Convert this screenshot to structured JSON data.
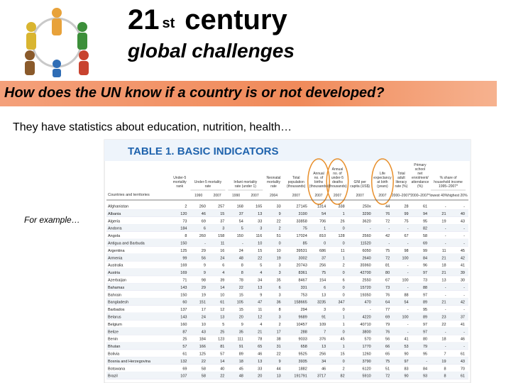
{
  "title": "21",
  "title_suffix": "st",
  "title_word": "century",
  "subtitle": "global challenges",
  "banner": "How does the UN know if a country is or not developed?",
  "intro": "They have statistics about education, nutrition, health…",
  "example_note": "For example…",
  "table": {
    "title": "TABLE 1. BASIC INDICATORS",
    "name_header": "Countries and territories",
    "groups": [
      {
        "label": "Under-5 mortality rank",
        "sub": []
      },
      {
        "label": "Under-5 mortality rate",
        "sub": [
          "1990",
          "2007"
        ]
      },
      {
        "label": "Infant mortality rate (under 1)",
        "sub": [
          "1990",
          "2007"
        ]
      },
      {
        "label": "Neonatal mortality rate",
        "sub": [
          "2004"
        ]
      },
      {
        "label": "Total population (thousands)",
        "sub": [
          "2007"
        ]
      },
      {
        "label": "Annual no. of births (thousands)",
        "sub": [
          "2007"
        ],
        "highlighted": true
      },
      {
        "label": "Annual no. of under-5 deaths (thousands)",
        "sub": [
          "2007"
        ],
        "highlighted": true
      },
      {
        "label": "GNI per capita (US$)",
        "sub": [
          "2007"
        ]
      },
      {
        "label": "Life expectancy at birth (years)",
        "sub": [
          "2007"
        ],
        "highlighted": true
      },
      {
        "label": "Total adult literacy rate (%)",
        "sub": [
          "2000–2007*"
        ]
      },
      {
        "label": "Primary school net enrolment/ attendance (%)",
        "sub": [
          "2000–2007*"
        ]
      },
      {
        "label": "% share of household income 1995–2007*",
        "sub": [
          "lowest 40%",
          "highest 20%"
        ]
      }
    ],
    "rows": [
      [
        "Afghanistan",
        2,
        260,
        257,
        168,
        165,
        33,
        27145,
        1314,
        338,
        "250x",
        44,
        28,
        61,
        "-",
        "-"
      ],
      [
        "Albania",
        120,
        46,
        15,
        37,
        13,
        9,
        3190,
        54,
        1,
        3290,
        76,
        99,
        94,
        21,
        40
      ],
      [
        "Algeria",
        73,
        69,
        37,
        54,
        33,
        22,
        33858,
        706,
        26,
        3620,
        72,
        75,
        95,
        19,
        43
      ],
      [
        "Andorra",
        184,
        6,
        3,
        5,
        3,
        2,
        75,
        1,
        0,
        "-",
        "-",
        "-",
        82,
        "-",
        "-"
      ],
      [
        "Angola",
        8,
        260,
        158,
        150,
        116,
        51,
        17024,
        810,
        128,
        2560,
        42,
        67,
        58,
        "-",
        "-"
      ],
      [
        "Antigua and Barbuda",
        150,
        "-",
        11,
        "-",
        10,
        0,
        85,
        0,
        0,
        11520,
        "-",
        "-",
        69,
        "-",
        "-"
      ],
      [
        "Argentina",
        125,
        29,
        16,
        24,
        15,
        10,
        39531,
        686,
        11,
        6050,
        75,
        98,
        99,
        11,
        45
      ],
      [
        "Armenia",
        99,
        56,
        24,
        48,
        22,
        19,
        3002,
        37,
        1,
        2640,
        72,
        100,
        84,
        21,
        42
      ],
      [
        "Australia",
        169,
        9,
        6,
        8,
        5,
        3,
        20743,
        256,
        2,
        35960,
        81,
        "-",
        96,
        18,
        41
      ],
      [
        "Austria",
        169,
        9,
        4,
        8,
        4,
        3,
        8361,
        75,
        0,
        42700,
        80,
        "-",
        97,
        21,
        39
      ],
      [
        "Azerbaijan",
        71,
        98,
        39,
        78,
        34,
        35,
        8467,
        154,
        6,
        2550,
        67,
        100,
        73,
        13,
        30
      ],
      [
        "Bahamas",
        143,
        29,
        14,
        22,
        13,
        6,
        331,
        6,
        0,
        15720,
        73,
        "-",
        88,
        "-",
        "-"
      ],
      [
        "Bahrain",
        150,
        19,
        10,
        15,
        9,
        3,
        753,
        13,
        0,
        19350,
        76,
        88,
        97,
        "-",
        "-"
      ],
      [
        "Bangladesh",
        60,
        151,
        61,
        105,
        47,
        36,
        158665,
        3235,
        347,
        470,
        64,
        54,
        89,
        21,
        42
      ],
      [
        "Barbados",
        137,
        17,
        12,
        15,
        11,
        8,
        294,
        3,
        0,
        "-",
        77,
        "-",
        95,
        "-",
        "-"
      ],
      [
        "Belarus",
        143,
        24,
        13,
        20,
        12,
        3,
        9689,
        91,
        1,
        4220,
        69,
        100,
        89,
        23,
        37
      ],
      [
        "Belgium",
        160,
        10,
        5,
        9,
        4,
        2,
        10457,
        109,
        1,
        40710,
        79,
        "-",
        97,
        22,
        41
      ],
      [
        "Belize",
        87,
        43,
        25,
        35,
        21,
        17,
        288,
        7,
        0,
        3800,
        76,
        "-",
        97,
        "-",
        "-"
      ],
      [
        "Benin",
        25,
        184,
        123,
        111,
        78,
        38,
        9033,
        376,
        45,
        570,
        56,
        41,
        80,
        18,
        46
      ],
      [
        "Bhutan",
        57,
        166,
        81,
        91,
        65,
        31,
        658,
        13,
        1,
        1770,
        66,
        53,
        79,
        "-",
        "-"
      ],
      [
        "Bolivia",
        61,
        125,
        57,
        89,
        46,
        22,
        9525,
        256,
        15,
        1260,
        65,
        90,
        95,
        7,
        61
      ],
      [
        "Bosnia and Herzegovina",
        132,
        22,
        14,
        18,
        13,
        9,
        3935,
        34,
        0,
        3790,
        75,
        97,
        "-",
        19,
        43
      ],
      [
        "Botswana",
        69,
        58,
        40,
        45,
        33,
        44,
        1882,
        46,
        2,
        6120,
        51,
        83,
        84,
        8,
        70
      ],
      [
        "Brazil",
        107,
        58,
        22,
        48,
        20,
        13,
        191791,
        3717,
        82,
        5910,
        72,
        90,
        93,
        8,
        61
      ]
    ]
  }
}
